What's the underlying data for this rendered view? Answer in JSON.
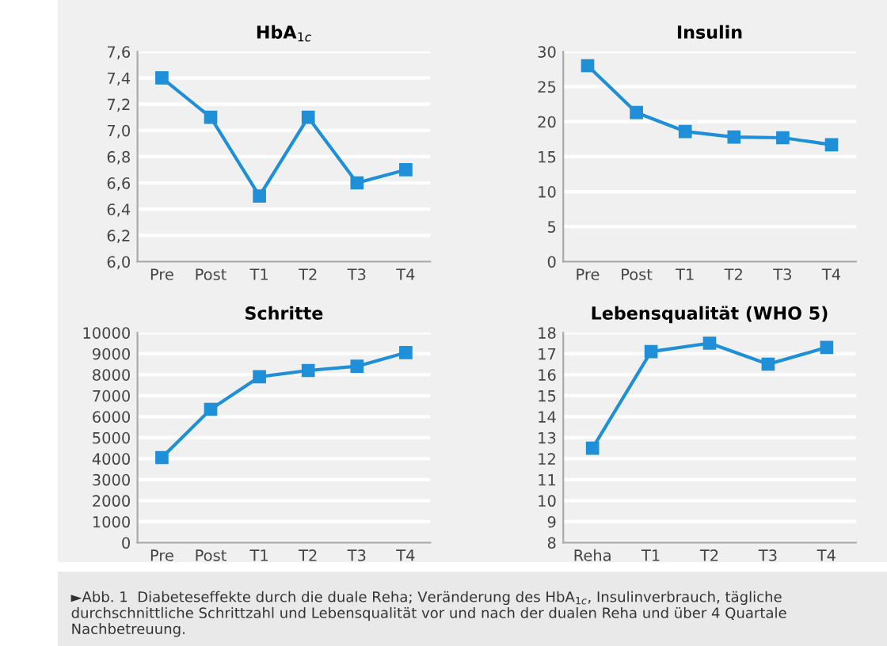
{
  "chart_data": [
    {
      "type": "line",
      "title": "HbA$_{1c}$",
      "categories": [
        "Pre",
        "Post",
        "T1",
        "T2",
        "T3",
        "T4"
      ],
      "series": [
        {
          "color": "#1f8fd8",
          "values": [
            7.4,
            7.1,
            6.5,
            7.1,
            6.6,
            6.7
          ]
        }
      ],
      "ylim": [
        6.0,
        7.6
      ],
      "yticks": [
        {
          "value": 6.0,
          "label": "6,0"
        },
        {
          "value": 6.2,
          "label": "6,2"
        },
        {
          "value": 6.4,
          "label": "6,4"
        },
        {
          "value": 6.6,
          "label": "6,6"
        },
        {
          "value": 6.8,
          "label": "6,8"
        },
        {
          "value": 7.0,
          "label": "7,0"
        },
        {
          "value": 7.2,
          "label": "7,2"
        },
        {
          "value": 7.4,
          "label": "7,4"
        },
        {
          "value": 7.6,
          "label": "7,6"
        }
      ],
      "grid": "y",
      "marker": "square",
      "line_style": "solid"
    },
    {
      "type": "line",
      "title": "Insulin",
      "categories": [
        "Pre",
        "Post",
        "T1",
        "T2",
        "T3",
        "T4"
      ],
      "series": [
        {
          "color": "#1f8fd8",
          "values": [
            28,
            21.3,
            18.6,
            17.8,
            17.7,
            16.7
          ]
        }
      ],
      "ylim": [
        0,
        30
      ],
      "yticks": [
        0,
        5,
        10,
        15,
        20,
        25,
        30
      ],
      "grid": "y",
      "marker": "square",
      "line_style": "solid"
    },
    {
      "type": "line",
      "title": "Schritte",
      "categories": [
        "Pre",
        "Post",
        "T1",
        "T2",
        "T3",
        "T4"
      ],
      "series": [
        {
          "color": "#1f8fd8",
          "values": [
            4050,
            6350,
            7900,
            8200,
            8400,
            9050
          ]
        }
      ],
      "ylim": [
        0,
        10000
      ],
      "yticks": [
        0,
        1000,
        2000,
        3000,
        4000,
        5000,
        6000,
        7000,
        8000,
        9000,
        10000
      ],
      "grid": "y",
      "marker": "square",
      "line_style": "solid"
    },
    {
      "type": "line",
      "title": "Lebensqualität (WHO 5)",
      "categories": [
        "Reha",
        "T1",
        "T2",
        "T3",
        "T4"
      ],
      "series": [
        {
          "color": "#1f8fd8",
          "values": [
            12.5,
            17.1,
            17.5,
            16.5,
            17.3
          ]
        }
      ],
      "ylim": [
        8,
        18
      ],
      "yticks": [
        8,
        9,
        10,
        11,
        12,
        13,
        14,
        15,
        16,
        17,
        18
      ],
      "grid": "y",
      "marker": "square",
      "line_style": "solid",
      "annotations": [
        "►Abb. 1  Diabeteseffekte durch die duale Reha; Veränderung des HbA$_{1c}$, Insulinverbrauch, tägliche durchschnittliche Schrittzahl und Lebensqualität vor und nach der dualen Reha und über 4 Quartale Nachbetreuung."
      ]
    }
  ]
}
